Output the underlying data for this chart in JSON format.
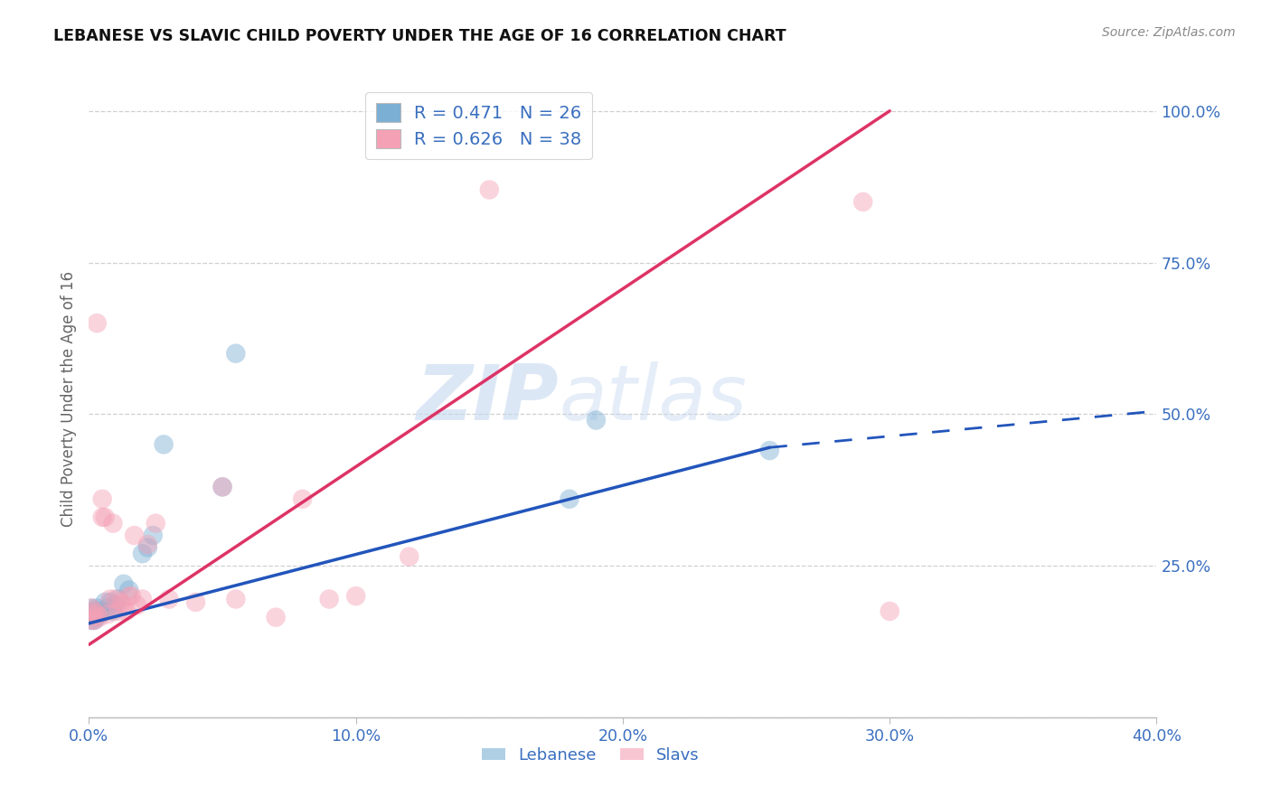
{
  "title": "LEBANESE VS SLAVIC CHILD POVERTY UNDER THE AGE OF 16 CORRELATION CHART",
  "source": "Source: ZipAtlas.com",
  "ylabel": "Child Poverty Under the Age of 16",
  "xlim": [
    0.0,
    0.4
  ],
  "ylim": [
    0.0,
    1.05
  ],
  "xticks": [
    0.0,
    0.1,
    0.2,
    0.3,
    0.4
  ],
  "yticks": [
    0.0,
    0.25,
    0.5,
    0.75,
    1.0
  ],
  "xticklabels": [
    "0.0%",
    "10.0%",
    "20.0%",
    "30.0%",
    "40.0%"
  ],
  "yticklabels": [
    "",
    "25.0%",
    "50.0%",
    "75.0%",
    "100.0%"
  ],
  "legend_labels": [
    "Lebanese",
    "Slavs"
  ],
  "R_lebanese": 0.471,
  "N_lebanese": 26,
  "R_slavs": 0.626,
  "N_slavs": 38,
  "color_lebanese": "#7bafd4",
  "color_slavs": "#f4a0b5",
  "line_color_lebanese": "#2255bb",
  "line_color_slavs": "#dd3366",
  "watermark_zip": "ZIP",
  "watermark_atlas": "atlas",
  "lebanese_x": [
    0.001,
    0.001,
    0.001,
    0.002,
    0.002,
    0.003,
    0.003,
    0.004,
    0.005,
    0.006,
    0.007,
    0.008,
    0.009,
    0.01,
    0.011,
    0.013,
    0.015,
    0.02,
    0.022,
    0.024,
    0.028,
    0.05,
    0.055,
    0.19,
    0.255,
    0.18
  ],
  "lebanese_y": [
    0.18,
    0.17,
    0.16,
    0.175,
    0.16,
    0.18,
    0.165,
    0.17,
    0.175,
    0.19,
    0.18,
    0.19,
    0.175,
    0.185,
    0.195,
    0.22,
    0.21,
    0.27,
    0.28,
    0.3,
    0.45,
    0.38,
    0.6,
    0.49,
    0.44,
    0.36
  ],
  "slavs_x": [
    0.001,
    0.001,
    0.001,
    0.002,
    0.002,
    0.003,
    0.003,
    0.004,
    0.005,
    0.005,
    0.006,
    0.007,
    0.008,
    0.009,
    0.01,
    0.011,
    0.012,
    0.013,
    0.014,
    0.015,
    0.016,
    0.017,
    0.018,
    0.02,
    0.022,
    0.025,
    0.03,
    0.04,
    0.05,
    0.055,
    0.07,
    0.08,
    0.09,
    0.1,
    0.12,
    0.15,
    0.29,
    0.3
  ],
  "slavs_y": [
    0.18,
    0.17,
    0.16,
    0.175,
    0.16,
    0.65,
    0.17,
    0.165,
    0.33,
    0.36,
    0.33,
    0.17,
    0.195,
    0.32,
    0.195,
    0.175,
    0.19,
    0.185,
    0.175,
    0.2,
    0.2,
    0.3,
    0.185,
    0.195,
    0.285,
    0.32,
    0.195,
    0.19,
    0.38,
    0.195,
    0.165,
    0.36,
    0.195,
    0.2,
    0.265,
    0.87,
    0.85,
    0.175
  ],
  "leb_line_x0": 0.0,
  "leb_line_y0": 0.155,
  "leb_line_x1": 0.255,
  "leb_line_y1": 0.445,
  "leb_line_dash_x1": 0.4,
  "leb_line_dash_y1": 0.505,
  "slav_line_x0": 0.0,
  "slav_line_y0": 0.12,
  "slav_line_x1": 0.3,
  "slav_line_y1": 1.0
}
